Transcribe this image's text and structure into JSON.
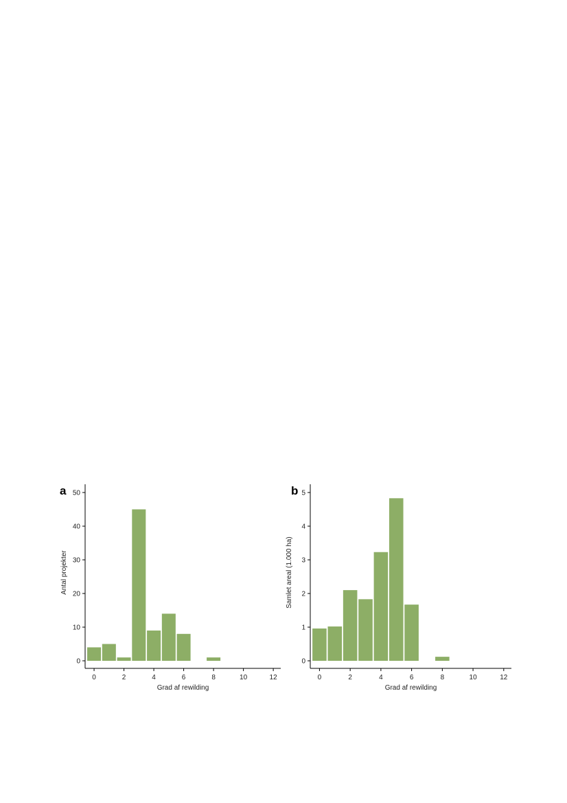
{
  "bar_color": "#8DAE66",
  "chart_data": [
    {
      "type": "bar",
      "panel": "a",
      "x": [
        0,
        1,
        2,
        3,
        4,
        5,
        6,
        8
      ],
      "values": [
        4,
        5,
        1,
        45,
        9,
        14,
        8,
        1
      ],
      "xlabel": "Grad af rewilding",
      "ylabel": "Antal projekter",
      "xlim": [
        -0.6,
        12.5
      ],
      "ylim": [
        0,
        52
      ],
      "xticks": [
        0,
        2,
        4,
        6,
        8,
        10,
        12
      ],
      "yticks": [
        0,
        10,
        20,
        30,
        40,
        50
      ],
      "grid": false,
      "legend": "none"
    },
    {
      "type": "bar",
      "panel": "b",
      "x": [
        0,
        1,
        2,
        3,
        4,
        5,
        6,
        8
      ],
      "values": [
        0.96,
        1.02,
        2.1,
        1.83,
        3.23,
        4.83,
        1.67,
        0.12
      ],
      "xlabel": "Grad af rewilding",
      "ylabel": "Samlet areal (1.000 ha)",
      "xlim": [
        -0.6,
        12.5
      ],
      "ylim": [
        0,
        5.2
      ],
      "xticks": [
        0,
        2,
        4,
        6,
        8,
        10,
        12
      ],
      "yticks": [
        0,
        1,
        2,
        3,
        4,
        5
      ],
      "grid": false,
      "legend": "none"
    }
  ]
}
